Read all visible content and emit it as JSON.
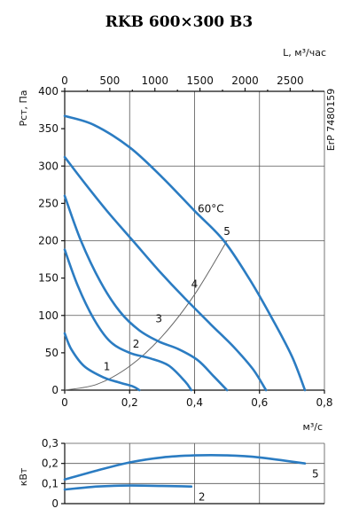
{
  "chart_data": [
    {
      "type": "line",
      "title": "RKB 600×300 B3",
      "ylabel": "Pст, Па",
      "xlabel": "м³/с",
      "x2label": "L, м³/час",
      "side_label": "ErP 7480159",
      "xlim": [
        0,
        0.8
      ],
      "ylim": [
        0,
        400
      ],
      "x_ticks": [
        "0",
        "0,2",
        "0,4",
        "0,6",
        "0,8"
      ],
      "y_ticks": [
        "0",
        "50",
        "100",
        "150",
        "200",
        "250",
        "300",
        "350",
        "400"
      ],
      "x2_ticks": [
        "0",
        "500",
        "1000",
        "1500",
        "2000",
        "2500"
      ],
      "x2_values": [
        0,
        500,
        1000,
        1500,
        2000,
        2500
      ],
      "grid": true,
      "series": [
        {
          "name": "1",
          "x": [
            0,
            0.02,
            0.06,
            0.12,
            0.17,
            0.21,
            0.23
          ],
          "y": [
            76,
            55,
            32,
            17,
            10,
            5,
            0
          ]
        },
        {
          "name": "2",
          "x": [
            0,
            0.04,
            0.09,
            0.14,
            0.2,
            0.26,
            0.32,
            0.37,
            0.39
          ],
          "y": [
            188,
            140,
            95,
            65,
            50,
            43,
            33,
            12,
            0
          ]
        },
        {
          "name": "3",
          "x": [
            0,
            0.05,
            0.11,
            0.17,
            0.23,
            0.29,
            0.35,
            0.41,
            0.46,
            0.5
          ],
          "y": [
            260,
            200,
            145,
            105,
            80,
            65,
            55,
            40,
            18,
            0
          ]
        },
        {
          "name": "4",
          "x": [
            0,
            0.06,
            0.13,
            0.21,
            0.29,
            0.37,
            0.45,
            0.52,
            0.58,
            0.62
          ],
          "y": [
            312,
            278,
            240,
            200,
            160,
            123,
            88,
            58,
            28,
            0
          ]
        },
        {
          "name": "5",
          "x": [
            0,
            0.09,
            0.2,
            0.3,
            0.4,
            0.49,
            0.57,
            0.64,
            0.7,
            0.74
          ],
          "y": [
            367,
            355,
            325,
            285,
            240,
            200,
            148,
            95,
            45,
            0
          ]
        }
      ],
      "curve_labels": [
        "1",
        "2",
        "3",
        "4",
        "5"
      ],
      "curve_label_points": [
        [
          0.13,
          27
        ],
        [
          0.22,
          57
        ],
        [
          0.29,
          91
        ],
        [
          0.4,
          137
        ],
        [
          0.5,
          208
        ]
      ],
      "temperature_curve": {
        "label": "60°C",
        "x": [
          0,
          0.1,
          0.2,
          0.3,
          0.4,
          0.5
        ],
        "y": [
          0,
          8,
          32,
          72,
          128,
          200
        ],
        "label_at": [
          0.45,
          238
        ]
      }
    },
    {
      "type": "line",
      "ylabel": "кВт",
      "xlim": [
        0,
        0.8
      ],
      "ylim": [
        0,
        0.3
      ],
      "y_ticks": [
        "0",
        "0,1",
        "0,2",
        "0,3"
      ],
      "grid": true,
      "series": [
        {
          "name": "5",
          "x": [
            0,
            0.1,
            0.2,
            0.3,
            0.4,
            0.5,
            0.6,
            0.74
          ],
          "y": [
            0.12,
            0.165,
            0.205,
            0.23,
            0.24,
            0.24,
            0.23,
            0.2
          ]
        },
        {
          "name": "2",
          "x": [
            0,
            0.1,
            0.2,
            0.3,
            0.39
          ],
          "y": [
            0.07,
            0.085,
            0.09,
            0.088,
            0.085
          ]
        }
      ]
    }
  ],
  "colors": {
    "curve": "#2b7cc2",
    "temperature_curve": "#666666"
  }
}
